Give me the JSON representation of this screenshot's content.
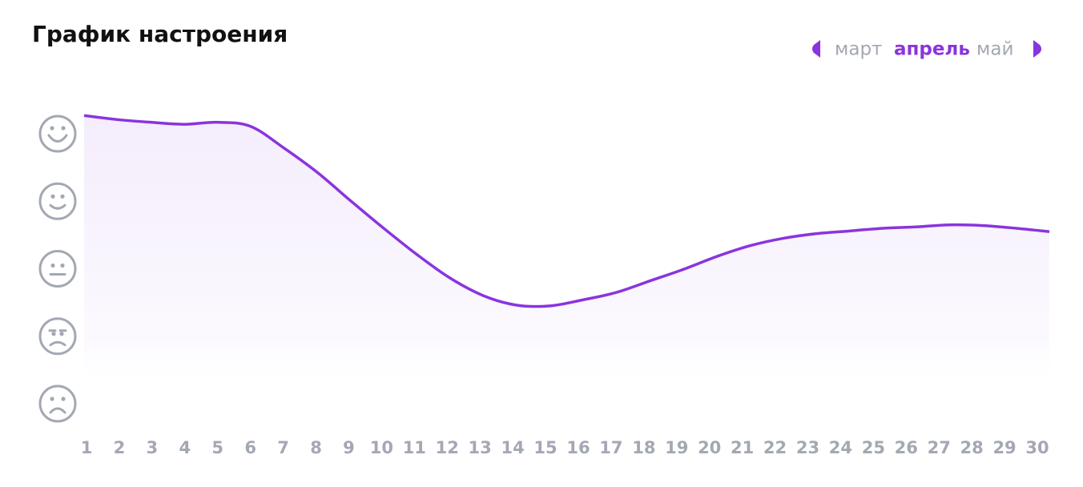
{
  "chart_data": {
    "type": "line",
    "title": "График настроения",
    "months": [
      "март",
      "апрель",
      "май"
    ],
    "categories": [
      "1",
      "2",
      "3",
      "4",
      "5",
      "6",
      "7",
      "8",
      "9",
      "10",
      "11",
      "12",
      "13",
      "14",
      "15",
      "16",
      "17",
      "18",
      "19",
      "20",
      "21",
      "22",
      "23",
      "24",
      "25",
      "26",
      "27",
      "28",
      "29",
      "30"
    ],
    "values": [
      5.27,
      5.21,
      5.17,
      5.14,
      5.17,
      5.11,
      4.79,
      4.43,
      4.01,
      3.6,
      3.21,
      2.86,
      2.6,
      2.46,
      2.45,
      2.54,
      2.65,
      2.82,
      2.99,
      3.18,
      3.34,
      3.45,
      3.52,
      3.56,
      3.6,
      3.62,
      3.65,
      3.64,
      3.6,
      3.55
    ],
    "color": "#8a34dd",
    "ylim": [
      1,
      5
    ],
    "yticks": [
      1,
      2,
      3,
      4,
      5
    ]
  }
}
